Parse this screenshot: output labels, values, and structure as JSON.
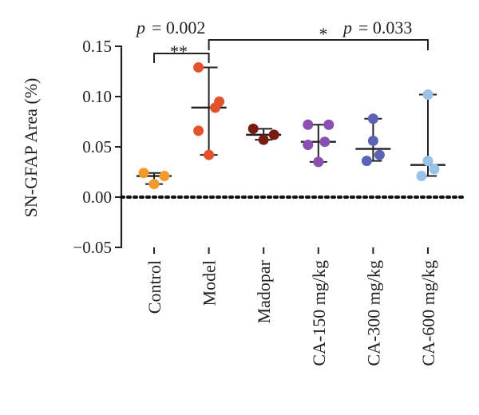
{
  "chart_data": {
    "type": "scatter",
    "ylabel": "SN-GFAP Area (%)",
    "ylim": [
      -0.05,
      0.15
    ],
    "yticks": [
      "0.15",
      "0.10",
      "0.05",
      "0.00",
      "−0.05"
    ],
    "ytick_values": [
      0.15,
      0.1,
      0.05,
      0.0,
      -0.05
    ],
    "reference_line": 0.0,
    "categories": [
      "Control",
      "Model",
      "Madopar",
      "CA-150 mg/kg",
      "CA-300 mg/kg",
      "CA-600 mg/kg"
    ],
    "colors": [
      "#f39a2c",
      "#e3522a",
      "#7a1a12",
      "#8a4fb0",
      "#5b64b4",
      "#9ac1e6"
    ],
    "groups": [
      {
        "points": [
          0.024,
          0.021,
          0.013
        ],
        "median": 0.021,
        "range": [
          0.013,
          0.024
        ]
      },
      {
        "points": [
          0.129,
          0.095,
          0.089,
          0.066,
          0.042
        ],
        "median": 0.089,
        "range": [
          0.042,
          0.129
        ]
      },
      {
        "points": [
          0.068,
          0.062,
          0.057
        ],
        "median": 0.062,
        "range": [
          0.057,
          0.068
        ]
      },
      {
        "points": [
          0.072,
          0.072,
          0.055,
          0.052,
          0.035
        ],
        "median": 0.055,
        "range": [
          0.035,
          0.072
        ]
      },
      {
        "points": [
          0.078,
          0.056,
          0.042,
          0.036
        ],
        "median": 0.048,
        "range": [
          0.036,
          0.078
        ]
      },
      {
        "points": [
          0.102,
          0.036,
          0.028,
          0.021
        ],
        "median": 0.032,
        "range": [
          0.021,
          0.102
        ]
      }
    ],
    "annotations": {
      "comparison1": {
        "stars": "**",
        "p_label": "p",
        "p_value": "= 0.002"
      },
      "comparison2": {
        "stars": "*",
        "p_label": "p",
        "p_value": "= 0.033"
      }
    }
  }
}
